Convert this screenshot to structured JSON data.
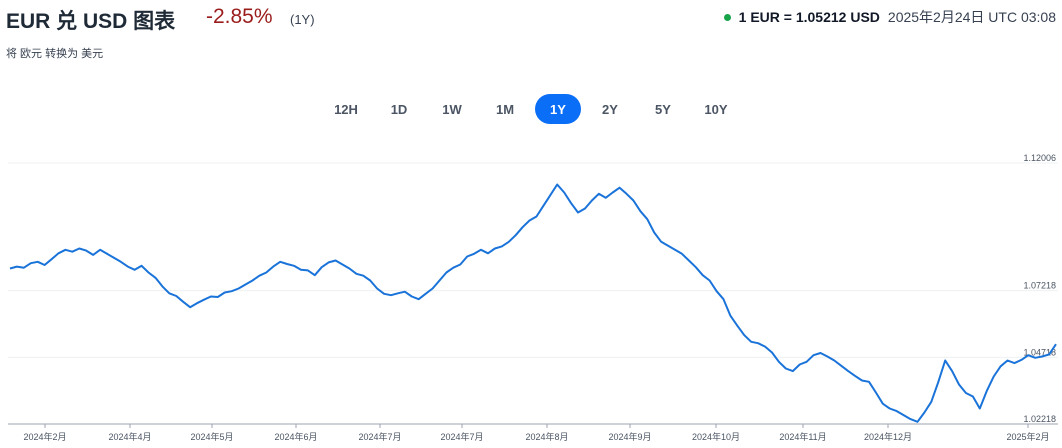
{
  "header": {
    "title": "EUR 兑 USD 图表",
    "change": "-2.85%",
    "period": "(1Y)",
    "subtitle": "将 欧元 转换为 美元",
    "rate": "1 EUR = 1.05212 USD",
    "timestamp": "2025年2月24日 UTC 03:08"
  },
  "colors": {
    "accent": "#0b6ef6",
    "line": "#1a73d9",
    "negative": "#9b1c1c",
    "live": "#16a34a"
  },
  "period_tabs": [
    {
      "label": "12H",
      "active": false
    },
    {
      "label": "1D",
      "active": false
    },
    {
      "label": "1W",
      "active": false
    },
    {
      "label": "1M",
      "active": false
    },
    {
      "label": "1Y",
      "active": true
    },
    {
      "label": "2Y",
      "active": false
    },
    {
      "label": "5Y",
      "active": false
    },
    {
      "label": "10Y",
      "active": false
    }
  ],
  "chart_data": {
    "type": "line",
    "title": "",
    "xlabel": "",
    "ylabel": "",
    "ylim": [
      1.02218,
      1.12006
    ],
    "y_ticks": [
      "1.12006",
      "1.07218",
      "1.04718",
      "1.02218"
    ],
    "x_ticks": [
      "2024年2月",
      "2024年4月",
      "2024年5月",
      "2024年6月",
      "2024年7月",
      "2024年7月",
      "2024年8月",
      "2024年9月",
      "2024年10月",
      "2024年11月",
      "2024年12月",
      "2025年2月"
    ],
    "grid": true,
    "series": [
      {
        "values": [
          1.0805,
          1.0812,
          1.0808,
          1.0825,
          1.083,
          1.0818,
          1.084,
          1.0862,
          1.0875,
          1.0868,
          1.088,
          1.0872,
          1.0856,
          1.0875,
          1.086,
          1.0845,
          1.083,
          1.0812,
          1.08,
          1.0815,
          1.079,
          1.077,
          1.0738,
          1.0712,
          1.0702,
          1.068,
          1.066,
          1.0675,
          1.0688,
          1.07,
          1.0698,
          1.0715,
          1.072,
          1.073,
          1.0745,
          1.076,
          1.0778,
          1.079,
          1.0812,
          1.083,
          1.0822,
          1.0815,
          1.08,
          1.0798,
          1.078,
          1.081,
          1.0828,
          1.0835,
          1.082,
          1.0805,
          1.0785,
          1.0778,
          1.076,
          1.073,
          1.071,
          1.0705,
          1.0712,
          1.0718,
          1.07,
          1.069,
          1.071,
          1.073,
          1.076,
          1.079,
          1.0808,
          1.082,
          1.085,
          1.086,
          1.0875,
          1.0862,
          1.088,
          1.0888,
          1.0905,
          1.093,
          1.096,
          1.0985,
          1.1,
          1.104,
          1.108,
          1.112,
          1.109,
          1.105,
          1.1015,
          1.103,
          1.106,
          1.1085,
          1.107,
          1.109,
          1.1108,
          1.1085,
          1.106,
          1.102,
          1.099,
          1.094,
          1.0905,
          1.089,
          1.0875,
          1.086,
          1.0835,
          1.081,
          1.078,
          1.076,
          1.072,
          1.069,
          1.0628,
          1.059,
          1.0555,
          1.053,
          1.0525,
          1.0512,
          1.049,
          1.0455,
          1.043,
          1.042,
          1.0445,
          1.0455,
          1.048,
          1.0488,
          1.0475,
          1.046,
          1.044,
          1.042,
          1.0402,
          1.0385,
          1.038,
          1.034,
          1.0298,
          1.028,
          1.027,
          1.0255,
          1.024,
          1.023,
          1.0265,
          1.0305,
          1.0378,
          1.046,
          1.042,
          1.037,
          1.0338,
          1.0325,
          1.028,
          1.0345,
          1.04,
          1.0438,
          1.046,
          1.045,
          1.0462,
          1.048,
          1.047,
          1.0475,
          1.0483,
          1.0521
        ]
      }
    ]
  }
}
